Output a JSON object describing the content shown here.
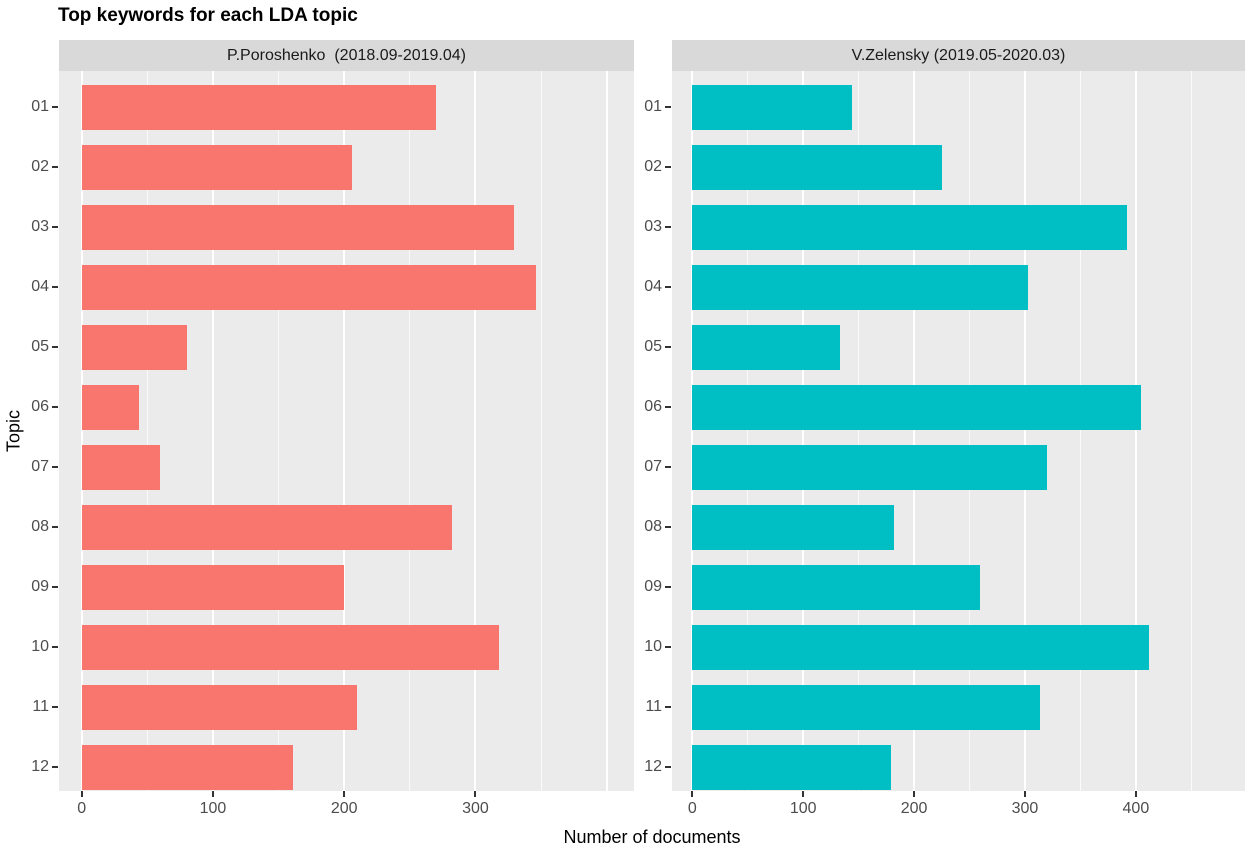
{
  "chart_data": {
    "type": "bar",
    "orientation": "horizontal",
    "title": "Top keywords for each LDA topic",
    "xlabel": "Number of documents",
    "ylabel": "Topic",
    "categories": [
      "01",
      "02",
      "03",
      "04",
      "05",
      "06",
      "07",
      "08",
      "09",
      "10",
      "11",
      "12"
    ],
    "grid": {
      "major_every": 100,
      "minor_every": 50,
      "grid_on": true,
      "color": "#FFFFFF"
    },
    "panel_bg": "#EBEBEB",
    "strip_bg": "#D9D9D9",
    "tick_color": "#333333",
    "axis_text_color": "#4D4D4D",
    "facets": [
      {
        "label": "P.Poroshenko  (2018.09-2019.04)",
        "color": "#F8766D",
        "values": [
          270,
          206,
          329,
          346,
          80,
          44,
          60,
          282,
          200,
          318,
          210,
          161
        ],
        "x_ticks": [
          0,
          100,
          200,
          300
        ],
        "xlim": [
          -17.3,
          420.8
        ]
      },
      {
        "label": "V.Zelensky (2019.05-2020.03)",
        "color": "#00BFC4",
        "values": [
          144,
          225,
          392,
          303,
          133,
          405,
          320,
          182,
          259,
          412,
          314,
          179
        ],
        "x_ticks": [
          0,
          100,
          200,
          300,
          400
        ],
        "xlim": [
          -18.3,
          498.4
        ]
      }
    ]
  }
}
